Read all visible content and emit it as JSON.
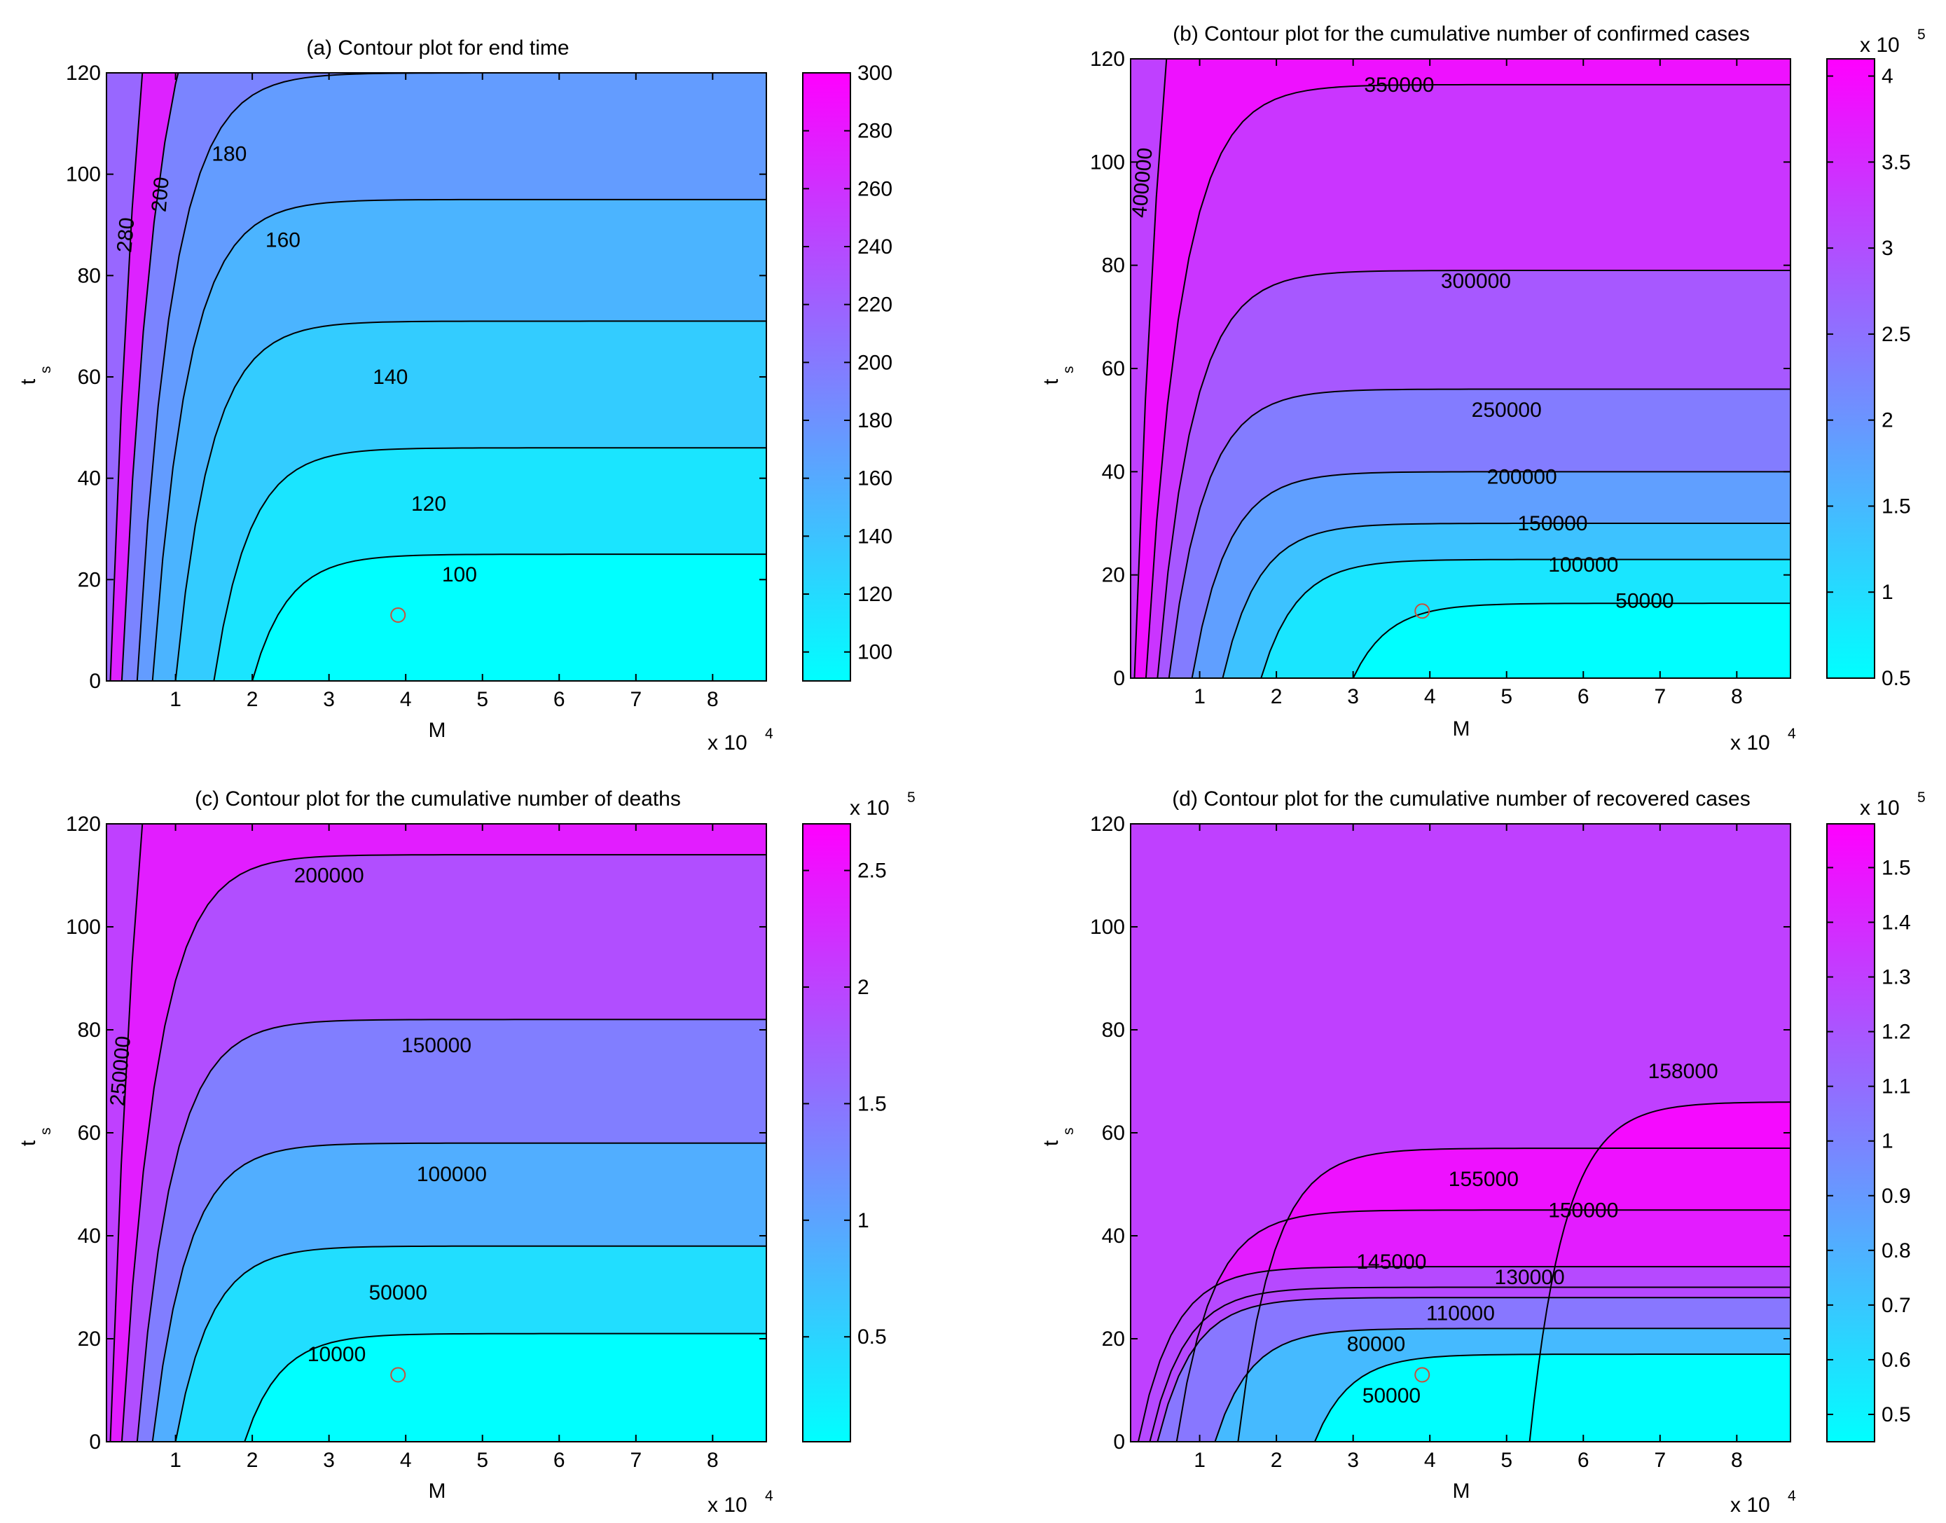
{
  "figure": {
    "panels": [
      {
        "title": "(a) Contour plot for end time",
        "xlabel": "M",
        "ylabel": "t",
        "ylabel_sub": "s",
        "x_multiplier": "x 10",
        "x_multiplier_exp": "4",
        "cb_multiplier": "",
        "cb_multiplier_exp": ""
      },
      {
        "title": "(b) Contour plot for the cumulative number of confirmed cases",
        "xlabel": "M",
        "ylabel": "t",
        "ylabel_sub": "s",
        "x_multiplier": "x 10",
        "x_multiplier_exp": "4",
        "cb_multiplier": "x 10",
        "cb_multiplier_exp": "5"
      },
      {
        "title": "(c) Contour plot for the cumulative number of deaths",
        "xlabel": "M",
        "ylabel": "t",
        "ylabel_sub": "s",
        "x_multiplier": "x 10",
        "x_multiplier_exp": "4",
        "cb_multiplier": "x 10",
        "cb_multiplier_exp": "5"
      },
      {
        "title": "(d) Contour plot for the cumulative number of recovered cases",
        "xlabel": "M",
        "ylabel": "t",
        "ylabel_sub": "s",
        "x_multiplier": "x 10",
        "x_multiplier_exp": "4",
        "cb_multiplier": "x 10",
        "cb_multiplier_exp": "5"
      }
    ]
  },
  "colors": {
    "low": "#00ffff",
    "high": "#ff00ff",
    "marker": "#c8503c",
    "line": "#000000"
  },
  "chart_data": [
    {
      "type": "contour",
      "title": "(a) Contour plot for end time",
      "xlabel": "M",
      "ylabel": "t_s",
      "x_scale": "x 10^4",
      "xlim": [
        0.1,
        8.7
      ],
      "ylim": [
        0,
        120
      ],
      "x_ticks": [
        1,
        2,
        3,
        4,
        5,
        6,
        7,
        8
      ],
      "y_ticks": [
        0,
        20,
        40,
        60,
        80,
        100,
        120
      ],
      "colorbar": {
        "range": [
          90,
          300
        ],
        "ticks": [
          100,
          120,
          140,
          160,
          180,
          200,
          220,
          240,
          260,
          280,
          300
        ],
        "tick_labels": [
          "100",
          "120",
          "140",
          "160",
          "180",
          "200",
          "220",
          "240",
          "260",
          "280",
          "300"
        ],
        "multiplier": ""
      },
      "levels": [
        {
          "value": 100,
          "label": "100",
          "bend_x": 2.0,
          "plateau_y": 25,
          "label_at": [
            4.7,
            21
          ]
        },
        {
          "value": 120,
          "label": "120",
          "bend_x": 1.5,
          "plateau_y": 46,
          "label_at": [
            4.3,
            35
          ]
        },
        {
          "value": 140,
          "label": "140",
          "bend_x": 1.0,
          "plateau_y": 71,
          "label_at": [
            3.8,
            60
          ]
        },
        {
          "value": 160,
          "label": "160",
          "bend_x": 0.7,
          "plateau_y": 95,
          "label_at": [
            2.4,
            87
          ]
        },
        {
          "value": 180,
          "label": "180",
          "bend_x": 0.5,
          "plateau_y": 120,
          "label_at": [
            1.7,
            104
          ]
        },
        {
          "value": 200,
          "label": "200",
          "bend_x": 0.3,
          "plateau_y": 150,
          "label_at": [
            0.8,
            96
          ],
          "vertical": true
        },
        {
          "value": 280,
          "label": "280",
          "bend_x": 0.15,
          "plateau_y": 200,
          "label_at": [
            0.35,
            88
          ],
          "vertical": true
        }
      ],
      "marker": [
        3.9,
        13
      ]
    },
    {
      "type": "contour",
      "title": "(b) Contour plot for the cumulative number of confirmed cases",
      "xlabel": "M",
      "ylabel": "t_s",
      "x_scale": "x 10^4",
      "xlim": [
        0.1,
        8.7
      ],
      "ylim": [
        0,
        120
      ],
      "x_ticks": [
        1,
        2,
        3,
        4,
        5,
        6,
        7,
        8
      ],
      "y_ticks": [
        0,
        20,
        40,
        60,
        80,
        100,
        120
      ],
      "colorbar": {
        "range": [
          0.5,
          4.1
        ],
        "ticks": [
          0.5,
          1,
          1.5,
          2,
          2.5,
          3,
          3.5,
          4
        ],
        "tick_labels": [
          "0.5",
          "1",
          "1.5",
          "2",
          "2.5",
          "3",
          "3.5",
          "4"
        ],
        "multiplier": "x 10^5"
      },
      "levels": [
        {
          "value": 50000,
          "label": "50000",
          "bend_x": 3.0,
          "plateau_y": 14.5,
          "label_at": [
            6.8,
            15
          ]
        },
        {
          "value": 100000,
          "label": "100000",
          "bend_x": 1.8,
          "plateau_y": 23,
          "label_at": [
            6.0,
            22
          ]
        },
        {
          "value": 150000,
          "label": "150000",
          "bend_x": 1.3,
          "plateau_y": 30,
          "label_at": [
            5.6,
            30
          ]
        },
        {
          "value": 200000,
          "label": "200000",
          "bend_x": 0.9,
          "plateau_y": 40,
          "label_at": [
            5.2,
            39
          ]
        },
        {
          "value": 250000,
          "label": "250000",
          "bend_x": 0.6,
          "plateau_y": 56,
          "label_at": [
            5.0,
            52
          ]
        },
        {
          "value": 300000,
          "label": "300000",
          "bend_x": 0.45,
          "plateau_y": 79,
          "label_at": [
            4.6,
            77
          ]
        },
        {
          "value": 350000,
          "label": "350000",
          "bend_x": 0.3,
          "plateau_y": 115,
          "label_at": [
            3.6,
            115
          ]
        },
        {
          "value": 400000,
          "label": "400000",
          "bend_x": 0.15,
          "plateau_y": 200,
          "label_at": [
            0.25,
            96
          ],
          "vertical": true
        }
      ],
      "marker": [
        3.9,
        13
      ]
    },
    {
      "type": "contour",
      "title": "(c) Contour plot for the cumulative number of deaths",
      "xlabel": "M",
      "ylabel": "t_s",
      "x_scale": "x 10^4",
      "xlim": [
        0.1,
        8.7
      ],
      "ylim": [
        0,
        120
      ],
      "x_ticks": [
        1,
        2,
        3,
        4,
        5,
        6,
        7,
        8
      ],
      "y_ticks": [
        0,
        20,
        40,
        60,
        80,
        100,
        120
      ],
      "colorbar": {
        "range": [
          0.05,
          2.7
        ],
        "ticks": [
          0.5,
          1,
          1.5,
          2,
          2.5
        ],
        "tick_labels": [
          "0.5",
          "1",
          "1.5",
          "2",
          "2.5"
        ],
        "multiplier": "x 10^5"
      },
      "levels": [
        {
          "value": 10000,
          "label": "10000",
          "bend_x": 1.9,
          "plateau_y": 21,
          "label_at": [
            3.1,
            17
          ]
        },
        {
          "value": 50000,
          "label": "50000",
          "bend_x": 1.0,
          "plateau_y": 38,
          "label_at": [
            3.9,
            29
          ]
        },
        {
          "value": 100000,
          "label": "100000",
          "bend_x": 0.7,
          "plateau_y": 58,
          "label_at": [
            4.6,
            52
          ]
        },
        {
          "value": 150000,
          "label": "150000",
          "bend_x": 0.5,
          "plateau_y": 82,
          "label_at": [
            4.4,
            77
          ]
        },
        {
          "value": 200000,
          "label": "200000",
          "bend_x": 0.3,
          "plateau_y": 114,
          "label_at": [
            3.0,
            110
          ]
        },
        {
          "value": 250000,
          "label": "250000",
          "bend_x": 0.15,
          "plateau_y": 200,
          "label_at": [
            0.28,
            72
          ],
          "vertical": true
        }
      ],
      "marker": [
        3.9,
        13
      ]
    },
    {
      "type": "contour",
      "title": "(d) Contour plot for the cumulative number of recovered cases",
      "xlabel": "M",
      "ylabel": "t_s",
      "x_scale": "x 10^4",
      "xlim": [
        0.1,
        8.7
      ],
      "ylim": [
        0,
        120
      ],
      "x_ticks": [
        1,
        2,
        3,
        4,
        5,
        6,
        7,
        8
      ],
      "y_ticks": [
        0,
        20,
        40,
        60,
        80,
        100,
        120
      ],
      "colorbar": {
        "range": [
          0.45,
          1.58
        ],
        "ticks": [
          0.5,
          0.6,
          0.7,
          0.8,
          0.9,
          1,
          1.1,
          1.2,
          1.3,
          1.4,
          1.5
        ],
        "tick_labels": [
          "0.5",
          "0.6",
          "0.7",
          "0.8",
          "0.9",
          "1",
          "1.1",
          "1.2",
          "1.3",
          "1.4",
          "1.5"
        ],
        "multiplier": "x 10^5"
      },
      "levels": [
        {
          "value": 50000,
          "label": "50000",
          "bend_x": 2.5,
          "plateau_y": 17,
          "label_at": [
            3.5,
            9
          ]
        },
        {
          "value": 80000,
          "label": "80000",
          "bend_x": 1.2,
          "plateau_y": 22,
          "label_at": [
            3.3,
            19
          ]
        },
        {
          "value": 110000,
          "label": "110000",
          "bend_x": 0.45,
          "plateau_y": 28,
          "label_at": [
            4.4,
            25
          ]
        },
        {
          "value": 130000,
          "label": "130000",
          "bend_x": 0.2,
          "plateau_y": 34,
          "label_at": [
            5.3,
            32
          ]
        },
        {
          "value": 145000,
          "label": "145000",
          "bend_x": 0.35,
          "plateau_y": 30,
          "label_at": [
            3.5,
            35
          ]
        },
        {
          "value": 150000,
          "label": "150000",
          "bend_x": 0.7,
          "plateau_y": 45,
          "label_at": [
            6.0,
            45
          ]
        },
        {
          "value": 155000,
          "label": "155000",
          "bend_x": 1.5,
          "plateau_y": 57,
          "label_at": [
            4.7,
            51
          ]
        },
        {
          "value": 158000,
          "label": "158000",
          "bend_x": 5.3,
          "plateau_y": 66,
          "label_at": [
            7.3,
            72
          ]
        }
      ],
      "marker": [
        3.9,
        13
      ]
    }
  ]
}
